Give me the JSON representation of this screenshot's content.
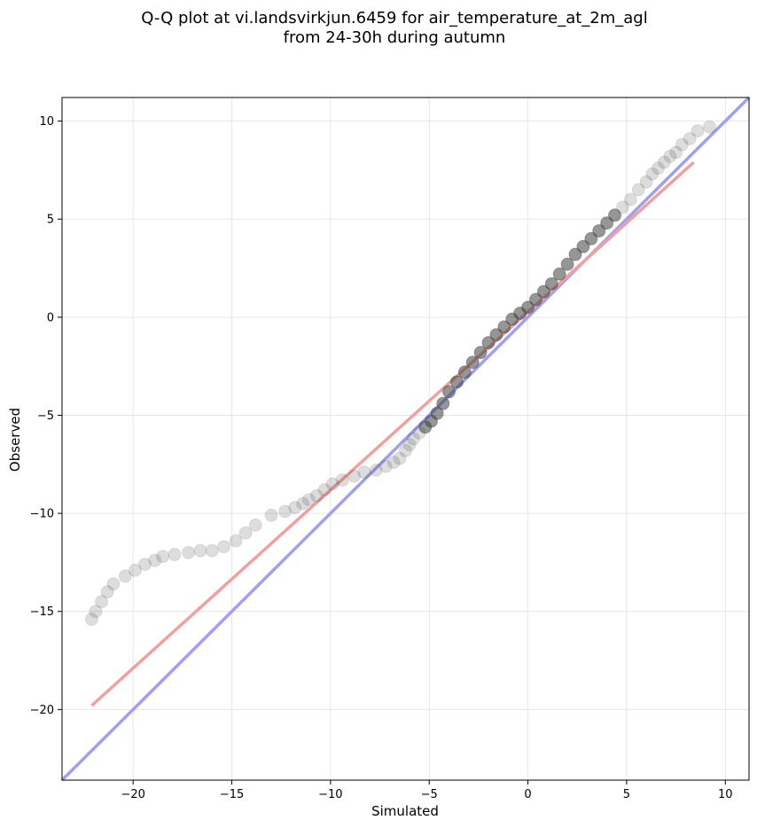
{
  "chart_data": {
    "type": "scatter",
    "title_lines": [
      "Q-Q plot at vi.landsvirkjun.6459 for air_temperature_at_2m_agl",
      "from 24-30h during autumn"
    ],
    "xlabel": "Simulated",
    "ylabel": "Observed",
    "xlim": [
      -23.6,
      11.2
    ],
    "ylim": [
      -23.6,
      11.2
    ],
    "x_ticks": [
      -20,
      -15,
      -10,
      -5,
      0,
      5,
      10
    ],
    "y_ticks": [
      -20,
      -15,
      -10,
      -5,
      0,
      5,
      10
    ],
    "grid": true,
    "quantile_points": {
      "x": [
        -22.1,
        -21.9,
        -21.6,
        -21.3,
        -21.0,
        -20.4,
        -19.9,
        -19.4,
        -18.9,
        -18.5,
        -17.9,
        -17.2,
        -16.6,
        -16.0,
        -15.4,
        -14.8,
        -14.3,
        -13.8,
        -13.0,
        -12.3,
        -11.8,
        -11.4,
        -11.1,
        -10.7,
        -10.3,
        -9.9,
        -9.4,
        -8.8,
        -8.3,
        -7.7,
        -7.2,
        -6.8,
        -6.5,
        -6.2,
        -6.0,
        -5.8,
        -5.5,
        -5.2,
        -4.9,
        -4.6,
        -4.3,
        -4.0,
        -3.6,
        -3.2,
        -2.8,
        -2.4,
        -2.0,
        -1.6,
        -1.2,
        -0.8,
        -0.4,
        0.0,
        0.4,
        0.8,
        1.2,
        1.6,
        2.0,
        2.4,
        2.8,
        3.2,
        3.6,
        4.0,
        4.4,
        4.8,
        5.2,
        5.6,
        6.0,
        6.3,
        6.6,
        6.9,
        7.2,
        7.5,
        7.8,
        8.2,
        8.6,
        9.2
      ],
      "y": [
        -15.4,
        -15.0,
        -14.5,
        -14.0,
        -13.6,
        -13.2,
        -12.9,
        -12.6,
        -12.4,
        -12.2,
        -12.1,
        -12.0,
        -11.9,
        -11.9,
        -11.7,
        -11.4,
        -11.0,
        -10.6,
        -10.1,
        -9.9,
        -9.7,
        -9.5,
        -9.3,
        -9.1,
        -8.8,
        -8.5,
        -8.3,
        -8.1,
        -7.9,
        -7.8,
        -7.6,
        -7.4,
        -7.2,
        -6.8,
        -6.5,
        -6.2,
        -5.9,
        -5.6,
        -5.3,
        -4.9,
        -4.4,
        -3.8,
        -3.3,
        -2.8,
        -2.3,
        -1.8,
        -1.3,
        -0.9,
        -0.5,
        -0.1,
        0.2,
        0.5,
        0.9,
        1.3,
        1.7,
        2.2,
        2.7,
        3.2,
        3.6,
        4.0,
        4.4,
        4.8,
        5.2,
        5.6,
        6.0,
        6.5,
        6.9,
        7.3,
        7.6,
        7.9,
        8.2,
        8.4,
        8.8,
        9.1,
        9.5,
        9.7
      ]
    },
    "reference_lines": [
      {
        "color": "#a0a0f0",
        "x": [
          -23.6,
          11.2
        ],
        "y": [
          -23.6,
          11.2
        ]
      },
      {
        "color": "#f0a0a0",
        "x": [
          -22.1,
          8.4
        ],
        "y": [
          -19.8,
          7.9
        ]
      }
    ]
  }
}
